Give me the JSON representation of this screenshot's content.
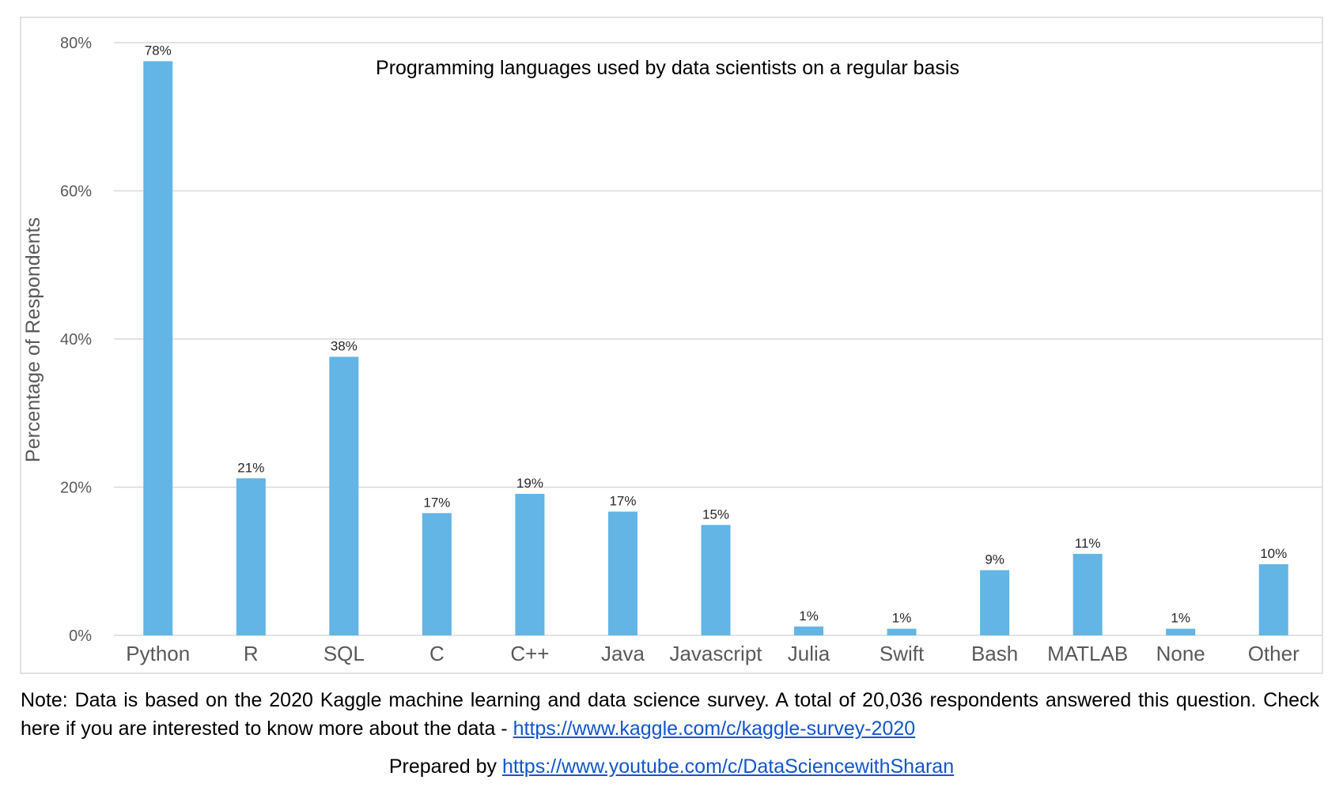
{
  "chart_data": {
    "type": "bar",
    "title": "Programming languages used by data scientists on a regular basis",
    "xlabel": "",
    "ylabel": "Percentage of Respondents",
    "categories": [
      "Python",
      "R",
      "SQL",
      "C",
      "C++",
      "Java",
      "Javascript",
      "Julia",
      "Swift",
      "Bash",
      "MATLAB",
      "None",
      "Other"
    ],
    "values": [
      77.5,
      21.2,
      37.6,
      16.5,
      19.1,
      16.7,
      14.9,
      1.2,
      0.9,
      8.8,
      11.0,
      0.9,
      9.6
    ],
    "data_labels": [
      "78%",
      "21%",
      "38%",
      "17%",
      "19%",
      "17%",
      "15%",
      "1%",
      "1%",
      "9%",
      "11%",
      "1%",
      "10%"
    ],
    "ylim": [
      0,
      80
    ],
    "yticks": [
      0,
      20,
      40,
      60,
      80
    ],
    "ytick_labels": [
      "0%",
      "20%",
      "40%",
      "60%",
      "80%"
    ],
    "grid": true,
    "legend": "none",
    "bar_color": "#62b5e5",
    "grid_color": "#d9d9d9",
    "tick_label_color": "#595959"
  },
  "footer": {
    "note_text": "Note: Data is based on the 2020 Kaggle machine learning and data science survey. A total of 20,036 respondents answered this question. Check here if you are interested to know more about the data - ",
    "note_link": "https://www.kaggle.com/c/kaggle-survey-2020",
    "prepared_text": "Prepared by ",
    "prepared_link": "https://www.youtube.com/c/DataSciencewithSharan",
    "link_color": "#1155cc"
  }
}
